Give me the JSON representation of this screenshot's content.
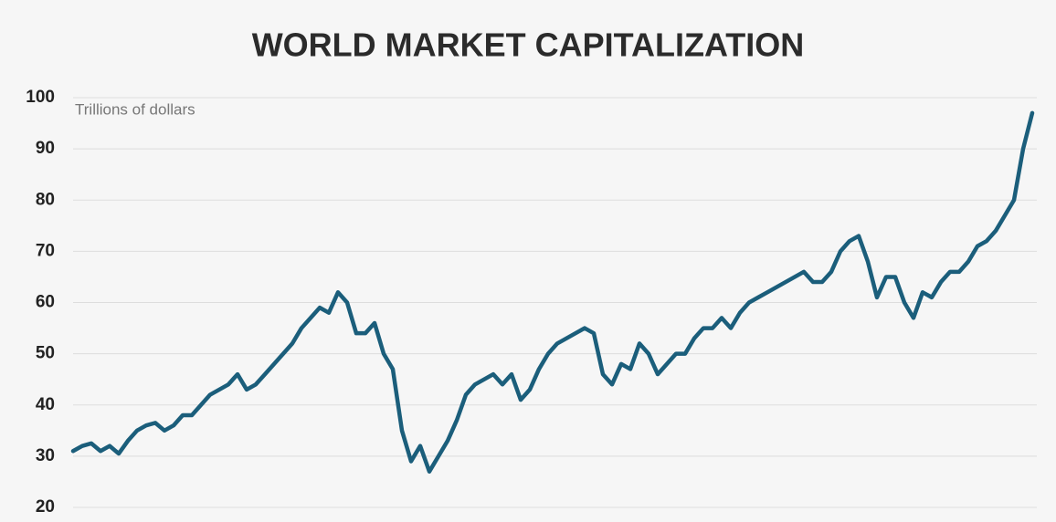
{
  "chart_data": {
    "type": "line",
    "title": "WORLD MARKET CAPITALIZATION",
    "subtitle": "Trillions of dollars",
    "color": "#1b5e7b",
    "grid": true,
    "ylim": [
      20,
      100
    ],
    "yticks": [
      20,
      30,
      40,
      50,
      60,
      70,
      80,
      90,
      100
    ],
    "values": [
      31,
      32,
      32.5,
      31,
      32,
      30.5,
      33,
      35,
      36,
      36.5,
      35,
      36,
      38,
      38,
      40,
      42,
      43,
      44,
      46,
      43,
      44,
      46,
      48,
      50,
      52,
      55,
      57,
      59,
      58,
      62,
      60,
      54,
      54,
      56,
      50,
      47,
      35,
      29,
      32,
      27,
      30,
      33,
      37,
      42,
      44,
      45,
      46,
      44,
      46,
      41,
      43,
      47,
      50,
      52,
      53,
      54,
      55,
      54,
      46,
      44,
      48,
      47,
      52,
      50,
      46,
      48,
      50,
      50,
      53,
      55,
      55,
      57,
      55,
      58,
      60,
      61,
      62,
      63,
      64,
      65,
      66,
      64,
      64,
      66,
      70,
      72,
      73,
      68,
      61,
      65,
      65,
      60,
      57,
      62,
      61,
      64,
      66,
      66,
      68,
      71,
      72,
      74,
      77,
      80,
      90,
      97
    ]
  }
}
